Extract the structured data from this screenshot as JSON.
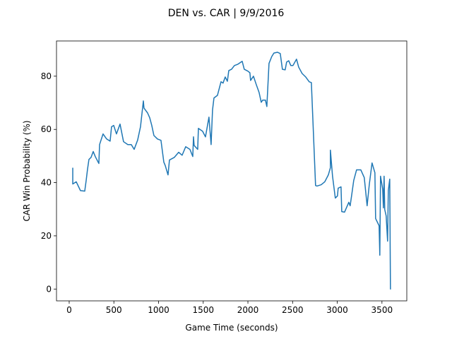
{
  "chart_data": {
    "type": "line",
    "title": "DEN vs. CAR | 9/9/2016",
    "x_label": "Game Time (seconds)",
    "y_label": "CAR Win Probability (%)",
    "xlim": [
      -142,
      3778
    ],
    "ylim": [
      -4.44,
      93.24
    ],
    "xticks": [
      0,
      500,
      1000,
      1500,
      2000,
      2500,
      3000,
      3500
    ],
    "yticks": [
      0,
      20,
      40,
      60,
      80
    ],
    "series": [
      {
        "name": "CAR",
        "color": "#1f77b4",
        "x": [
          40,
          40,
          79,
          126,
          174,
          190,
          205,
          221,
          245,
          269,
          292,
          324,
          332,
          340,
          379,
          419,
          458,
          474,
          498,
          529,
          569,
          608,
          656,
          695,
          727,
          766,
          798,
          830,
          837,
          877,
          901,
          924,
          948,
          988,
          1027,
          1059,
          1075,
          1106,
          1122,
          1177,
          1225,
          1264,
          1304,
          1351,
          1383,
          1391,
          1398,
          1438,
          1446,
          1493,
          1525,
          1564,
          1588,
          1604,
          1620,
          1659,
          1699,
          1722,
          1746,
          1770,
          1786,
          1817,
          1849,
          1888,
          1936,
          1959,
          1999,
          2022,
          2030,
          2062,
          2094,
          2125,
          2149,
          2165,
          2196,
          2212,
          2236,
          2267,
          2291,
          2330,
          2362,
          2386,
          2417,
          2433,
          2457,
          2480,
          2504,
          2544,
          2568,
          2607,
          2647,
          2686,
          2710,
          2757,
          2773,
          2820,
          2860,
          2900,
          2923,
          2923,
          2947,
          2978,
          3002,
          3010,
          3042,
          3050,
          3081,
          3129,
          3144,
          3160,
          3184,
          3216,
          3263,
          3302,
          3334,
          3358,
          3389,
          3421,
          3429,
          3468,
          3476,
          3484,
          3508,
          3516,
          3524,
          3531,
          3547,
          3563,
          3571,
          3587,
          3595,
          3600
        ],
        "values": [
          45.6,
          39.5,
          40.3,
          37,
          36.8,
          40.8,
          45,
          48.7,
          49.5,
          51.7,
          49.8,
          47.7,
          47.2,
          54.3,
          58.3,
          56.4,
          55.6,
          61,
          61.5,
          58.3,
          62,
          55.4,
          54.3,
          54.3,
          52.5,
          56,
          61,
          70.7,
          68,
          66.2,
          64.4,
          61.5,
          57.7,
          56.4,
          55.9,
          47.7,
          46.4,
          42.9,
          48.5,
          49.5,
          51.4,
          50.3,
          53.5,
          52.5,
          49.8,
          57.2,
          54,
          52.5,
          60.4,
          59.3,
          57.2,
          64.6,
          54.3,
          67.3,
          71.8,
          72.8,
          77.9,
          77.4,
          79.7,
          78.1,
          82.1,
          82.6,
          84,
          84.5,
          85.6,
          82.6,
          81.9,
          81.3,
          78.4,
          80,
          76.8,
          73.9,
          70.2,
          71,
          71,
          68.6,
          84.8,
          87.4,
          88.7,
          89,
          88.5,
          82.6,
          82.4,
          85.3,
          85.8,
          84,
          84,
          86.4,
          83.4,
          81,
          79.7,
          77.9,
          77.6,
          38.9,
          38.7,
          39.2,
          40.3,
          42.9,
          45.6,
          52.2,
          42.4,
          34.2,
          35,
          37.9,
          38.4,
          29.1,
          28.9,
          32.6,
          31.3,
          35,
          40.8,
          44.8,
          44.8,
          41.9,
          31.3,
          39.2,
          47.4,
          43.7,
          26.5,
          23.8,
          12.7,
          42.4,
          37.6,
          30.5,
          42.4,
          29.9,
          27.5,
          18,
          37,
          41.3,
          0,
          0
        ]
      }
    ]
  }
}
